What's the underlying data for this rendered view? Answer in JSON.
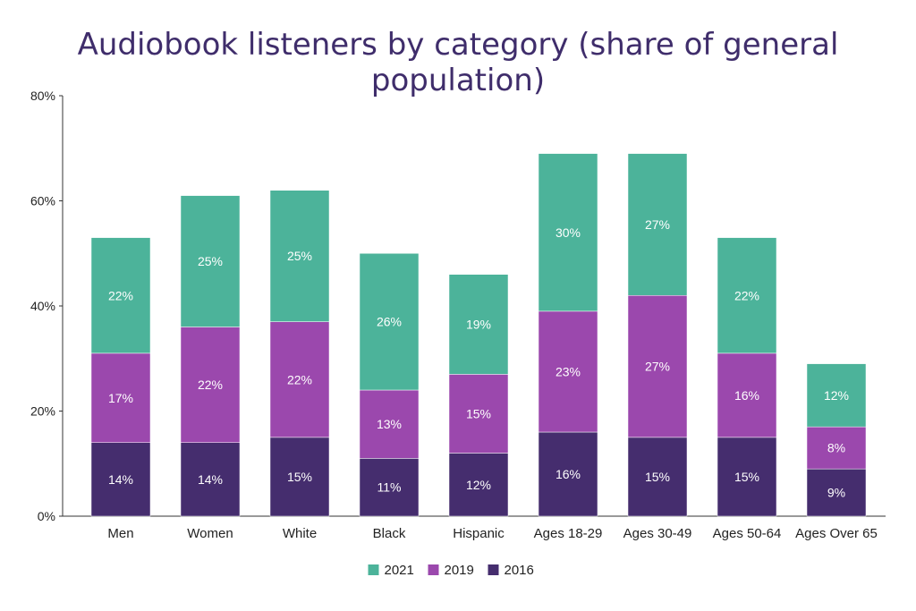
{
  "chart_data": {
    "type": "bar",
    "stacked": true,
    "title": "Audiobook listeners by category (share of general population)",
    "xlabel": "",
    "ylabel": "",
    "ylim": [
      0,
      80
    ],
    "yticks": [
      "0%",
      "20%",
      "40%",
      "60%",
      "80%"
    ],
    "grid": false,
    "legend_position": "bottom-center",
    "categories": [
      "Men",
      "Women",
      "White",
      "Black",
      "Hispanic",
      "Ages 18-29",
      "Ages 30-49",
      "Ages 50-64",
      "Ages Over 65"
    ],
    "series": [
      {
        "name": "2016",
        "color": "#452d6e",
        "values": [
          14,
          14,
          15,
          11,
          12,
          16,
          15,
          15,
          9
        ],
        "labels": [
          "14%",
          "14%",
          "15%",
          "11%",
          "12%",
          "16%",
          "15%",
          "15%",
          "9%"
        ]
      },
      {
        "name": "2019",
        "color": "#9b48ad",
        "values": [
          17,
          22,
          22,
          13,
          15,
          23,
          27,
          16,
          8
        ],
        "labels": [
          "17%",
          "22%",
          "22%",
          "13%",
          "15%",
          "23%",
          "27%",
          "16%",
          "8%"
        ]
      },
      {
        "name": "2021",
        "color": "#4cb39a",
        "values": [
          22,
          25,
          25,
          26,
          19,
          30,
          27,
          22,
          12
        ],
        "labels": [
          "22%",
          "25%",
          "25%",
          "26%",
          "19%",
          "30%",
          "27%",
          "22%",
          "12%"
        ]
      }
    ],
    "legend_order": [
      "2021",
      "2019",
      "2016"
    ]
  }
}
